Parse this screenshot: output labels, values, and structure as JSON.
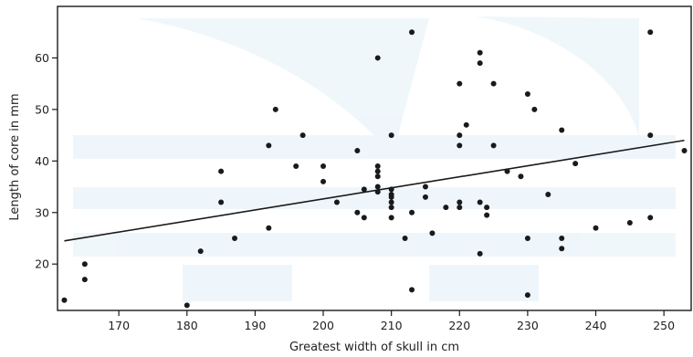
{
  "chart_data": {
    "type": "scatter",
    "title": "",
    "xlabel": "Greatest width of skull in cm",
    "ylabel": "Length of core in mm",
    "xlim": [
      161,
      254
    ],
    "ylim": [
      11,
      70
    ],
    "xticks": [
      170,
      180,
      190,
      200,
      210,
      220,
      230,
      240,
      250
    ],
    "yticks": [
      20,
      30,
      40,
      50,
      60
    ],
    "x_tick_labels": [
      "170",
      "180",
      "190",
      "200",
      "210",
      "220",
      "230",
      "240",
      "250"
    ],
    "y_tick_labels": [
      "20",
      "30",
      "40",
      "50",
      "60"
    ],
    "grid": false,
    "legend": "none",
    "series": [
      {
        "points": [
          [
            162,
            13
          ],
          [
            165,
            20
          ],
          [
            165,
            17
          ],
          [
            180,
            12
          ],
          [
            182,
            22.5
          ],
          [
            185,
            38
          ],
          [
            185,
            32
          ],
          [
            187,
            25
          ],
          [
            192,
            43
          ],
          [
            192,
            27
          ],
          [
            193,
            50
          ],
          [
            196,
            39
          ],
          [
            197,
            45
          ],
          [
            200,
            39
          ],
          [
            200,
            36
          ],
          [
            202,
            32
          ],
          [
            205,
            42
          ],
          [
            205,
            30
          ],
          [
            206,
            34.5
          ],
          [
            206,
            29
          ],
          [
            208,
            60
          ],
          [
            208,
            39
          ],
          [
            208,
            38
          ],
          [
            208,
            37
          ],
          [
            208,
            35
          ],
          [
            208,
            34
          ],
          [
            210,
            45
          ],
          [
            210,
            34.5
          ],
          [
            210,
            33.5
          ],
          [
            210,
            33
          ],
          [
            210,
            32
          ],
          [
            210,
            31
          ],
          [
            210,
            29
          ],
          [
            212,
            25
          ],
          [
            213,
            65
          ],
          [
            213,
            30
          ],
          [
            213,
            15
          ],
          [
            215,
            35
          ],
          [
            215,
            33
          ],
          [
            216,
            26
          ],
          [
            218,
            31
          ],
          [
            220,
            55
          ],
          [
            220,
            45
          ],
          [
            220,
            43
          ],
          [
            220,
            32
          ],
          [
            220,
            31
          ],
          [
            221,
            47
          ],
          [
            223,
            61
          ],
          [
            223,
            59
          ],
          [
            223,
            32
          ],
          [
            223,
            22
          ],
          [
            224,
            31
          ],
          [
            224,
            29.5
          ],
          [
            225,
            55
          ],
          [
            225,
            43
          ],
          [
            227,
            38
          ],
          [
            229,
            37
          ],
          [
            230,
            53
          ],
          [
            230,
            25
          ],
          [
            230,
            14
          ],
          [
            231,
            50
          ],
          [
            233,
            33.5
          ],
          [
            235,
            46
          ],
          [
            235,
            25
          ],
          [
            235,
            23
          ],
          [
            237,
            39.5
          ],
          [
            240,
            27
          ],
          [
            245,
            28
          ],
          [
            248,
            65
          ],
          [
            248,
            45
          ],
          [
            248,
            29
          ],
          [
            253,
            42
          ]
        ]
      }
    ],
    "regression_line": {
      "x": [
        162,
        253
      ],
      "y": [
        24.5,
        44
      ]
    }
  },
  "colors": {
    "points": "#1a1a1a",
    "line": "#1a1a1a",
    "axes": "#1a1a1a",
    "watermark": "#eef6fb"
  }
}
